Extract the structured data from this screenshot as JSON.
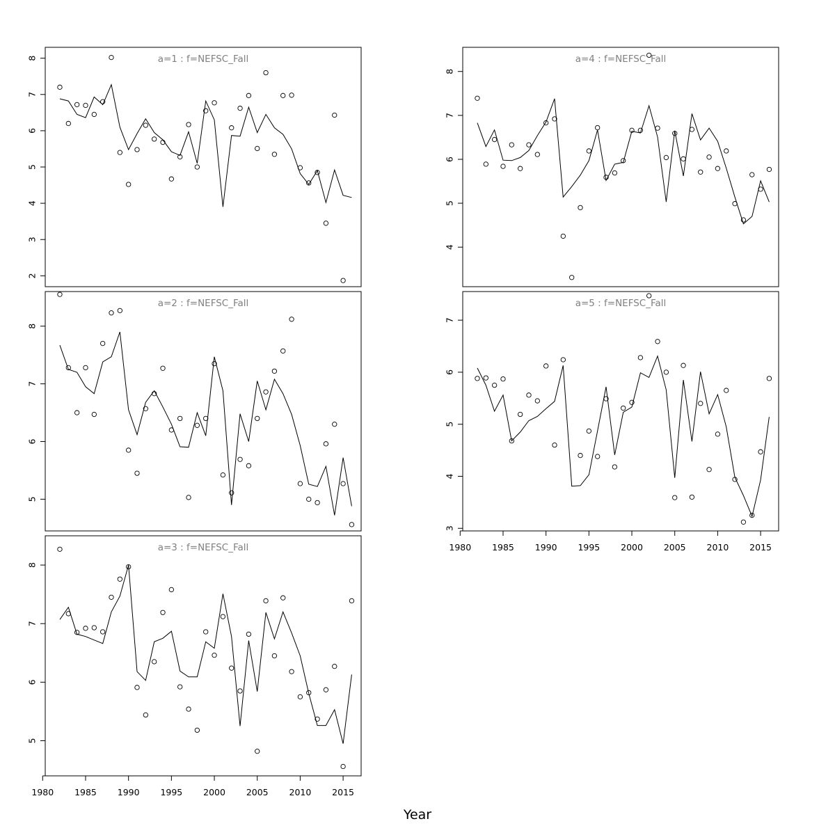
{
  "xlabel": "Year",
  "chart_data": [
    {
      "type": "line",
      "title": "a=1 : f=NEFSC_Fall",
      "x": [
        1982,
        1983,
        1984,
        1985,
        1986,
        1987,
        1988,
        1989,
        1990,
        1991,
        1992,
        1993,
        1994,
        1995,
        1996,
        1997,
        1998,
        1999,
        2000,
        2001,
        2002,
        2003,
        2004,
        2005,
        2006,
        2007,
        2008,
        2009,
        2010,
        2011,
        2012,
        2013,
        2014,
        2015,
        2016
      ],
      "series": [
        {
          "role": "observed",
          "marker": "open-circle",
          "values": [
            7.2,
            6.2,
            6.72,
            6.7,
            6.45,
            6.8,
            8.02,
            5.4,
            4.52,
            5.48,
            6.15,
            5.77,
            5.68,
            4.67,
            5.28,
            6.17,
            5.0,
            6.55,
            6.77,
            null,
            6.08,
            6.62,
            6.97,
            5.51,
            7.6,
            5.35,
            6.97,
            6.98,
            4.98,
            4.56,
            4.85,
            3.45,
            6.43,
            1.87,
            null
          ]
        },
        {
          "role": "predicted",
          "marker": "line",
          "values": [
            6.88,
            6.82,
            6.45,
            6.36,
            6.93,
            6.72,
            7.27,
            6.1,
            5.48,
            5.92,
            6.33,
            5.95,
            5.75,
            5.42,
            5.32,
            5.97,
            5.1,
            6.82,
            6.3,
            3.9,
            5.87,
            5.85,
            6.65,
            5.95,
            6.45,
            6.08,
            5.9,
            5.5,
            4.82,
            4.52,
            4.9,
            4.02,
            4.92,
            4.22,
            4.16
          ]
        }
      ],
      "ylim": [
        1.7,
        8.3
      ],
      "yticks": [
        2,
        3,
        4,
        5,
        6,
        7,
        8
      ],
      "show_xaxis": false
    },
    {
      "type": "line",
      "title": "a=2 : f=NEFSC_Fall",
      "x": [
        1982,
        1983,
        1984,
        1985,
        1986,
        1987,
        1988,
        1989,
        1990,
        1991,
        1992,
        1993,
        1994,
        1995,
        1996,
        1997,
        1998,
        1999,
        2000,
        2001,
        2002,
        2003,
        2004,
        2005,
        2006,
        2007,
        2008,
        2009,
        2010,
        2011,
        2012,
        2013,
        2014,
        2015,
        2016
      ],
      "series": [
        {
          "role": "observed",
          "marker": "open-circle",
          "values": [
            8.55,
            7.28,
            6.5,
            7.28,
            6.47,
            7.7,
            8.23,
            8.27,
            5.85,
            5.45,
            6.57,
            6.83,
            7.27,
            6.2,
            6.4,
            5.03,
            6.28,
            6.4,
            7.35,
            5.42,
            5.11,
            5.69,
            5.58,
            6.4,
            6.86,
            7.22,
            7.57,
            8.12,
            5.27,
            5.0,
            4.94,
            5.96,
            6.3,
            5.27,
            4.56
          ]
        },
        {
          "role": "predicted",
          "marker": "line",
          "values": [
            7.67,
            7.25,
            7.2,
            6.95,
            6.83,
            7.38,
            7.47,
            7.9,
            6.55,
            6.12,
            6.68,
            6.88,
            6.6,
            6.3,
            5.91,
            5.9,
            6.5,
            6.1,
            7.47,
            6.88,
            4.9,
            6.48,
            6.0,
            7.05,
            6.55,
            7.08,
            6.83,
            6.47,
            5.93,
            5.26,
            5.22,
            5.57,
            4.72,
            5.72,
            4.88
          ]
        }
      ],
      "ylim": [
        4.45,
        8.6
      ],
      "yticks": [
        5,
        6,
        7,
        8
      ],
      "show_xaxis": false
    },
    {
      "type": "line",
      "title": "a=3 : f=NEFSC_Fall",
      "x": [
        1982,
        1983,
        1984,
        1985,
        1986,
        1987,
        1988,
        1989,
        1990,
        1991,
        1992,
        1993,
        1994,
        1995,
        1996,
        1997,
        1998,
        1999,
        2000,
        2001,
        2002,
        2003,
        2004,
        2005,
        2006,
        2007,
        2008,
        2009,
        2010,
        2011,
        2012,
        2013,
        2014,
        2015,
        2016
      ],
      "series": [
        {
          "role": "observed",
          "marker": "open-circle",
          "values": [
            8.27,
            7.17,
            6.85,
            6.92,
            6.93,
            6.86,
            7.45,
            7.76,
            7.97,
            5.91,
            5.44,
            6.35,
            7.19,
            7.58,
            5.92,
            5.54,
            5.18,
            6.86,
            6.46,
            7.12,
            6.24,
            5.85,
            6.82,
            4.82,
            7.39,
            6.45,
            7.44,
            6.18,
            5.75,
            5.82,
            5.37,
            5.87,
            6.27,
            4.56,
            7.39
          ]
        },
        {
          "role": "predicted",
          "marker": "line",
          "values": [
            7.07,
            7.28,
            6.82,
            6.78,
            6.72,
            6.66,
            7.2,
            7.47,
            8.0,
            6.18,
            6.03,
            6.69,
            6.75,
            6.87,
            6.19,
            6.09,
            6.09,
            6.69,
            6.58,
            7.51,
            6.78,
            5.25,
            6.71,
            5.84,
            7.19,
            6.74,
            7.2,
            6.84,
            6.45,
            5.81,
            5.26,
            5.26,
            5.53,
            4.95,
            6.13
          ]
        }
      ],
      "ylim": [
        4.4,
        8.5
      ],
      "yticks": [
        5,
        6,
        7,
        8
      ],
      "xticks": [
        1980,
        1985,
        1990,
        1995,
        2000,
        2005,
        2010,
        2015
      ],
      "show_xaxis": true
    },
    {
      "type": "line",
      "title": "a=4 : f=NEFSC_Fall",
      "x": [
        1982,
        1983,
        1984,
        1985,
        1986,
        1987,
        1988,
        1989,
        1990,
        1991,
        1992,
        1993,
        1994,
        1995,
        1996,
        1997,
        1998,
        1999,
        2000,
        2001,
        2002,
        2003,
        2004,
        2005,
        2006,
        2007,
        2008,
        2009,
        2010,
        2011,
        2012,
        2013,
        2014,
        2015,
        2016
      ],
      "series": [
        {
          "role": "observed",
          "marker": "open-circle",
          "values": [
            7.39,
            5.89,
            6.45,
            5.84,
            6.33,
            5.79,
            6.33,
            6.11,
            6.83,
            6.92,
            4.25,
            3.31,
            4.9,
            6.19,
            6.72,
            5.59,
            5.69,
            5.97,
            6.66,
            6.66,
            8.37,
            6.71,
            6.04,
            6.59,
            6.01,
            6.68,
            5.71,
            6.05,
            5.79,
            6.19,
            4.99,
            4.62,
            5.65,
            5.32,
            5.77
          ]
        },
        {
          "role": "predicted",
          "marker": "line",
          "values": [
            6.83,
            6.29,
            6.67,
            5.98,
            5.97,
            6.04,
            6.2,
            6.54,
            6.85,
            7.38,
            5.14,
            5.38,
            5.64,
            5.97,
            6.67,
            5.52,
            5.89,
            5.93,
            6.64,
            6.6,
            7.22,
            6.51,
            5.03,
            6.65,
            5.62,
            7.04,
            6.44,
            6.71,
            6.41,
            5.8,
            5.14,
            4.53,
            4.7,
            5.51,
            5.03
          ]
        }
      ],
      "ylim": [
        3.1,
        8.55
      ],
      "yticks": [
        4,
        5,
        6,
        7,
        8
      ],
      "show_xaxis": false
    },
    {
      "type": "line",
      "title": "a=5 : f=NEFSC_Fall",
      "x": [
        1982,
        1983,
        1984,
        1985,
        1986,
        1987,
        1988,
        1989,
        1990,
        1991,
        1992,
        1993,
        1994,
        1995,
        1996,
        1997,
        1998,
        1999,
        2000,
        2001,
        2002,
        2003,
        2004,
        2005,
        2006,
        2007,
        2008,
        2009,
        2010,
        2011,
        2012,
        2013,
        2014,
        2015,
        2016
      ],
      "series": [
        {
          "role": "observed",
          "marker": "open-circle",
          "values": [
            5.88,
            5.89,
            5.75,
            5.87,
            4.68,
            5.19,
            5.56,
            5.45,
            6.12,
            4.6,
            6.24,
            null,
            4.4,
            4.87,
            4.38,
            5.49,
            4.18,
            5.31,
            5.42,
            6.28,
            7.47,
            6.59,
            6.0,
            3.59,
            6.13,
            3.6,
            5.4,
            4.13,
            4.81,
            5.65,
            3.94,
            3.12,
            3.25,
            4.47,
            5.88
          ]
        },
        {
          "role": "predicted",
          "marker": "line",
          "values": [
            6.08,
            5.75,
            5.25,
            5.56,
            4.68,
            4.85,
            5.07,
            5.15,
            5.3,
            5.44,
            6.13,
            3.81,
            3.82,
            4.03,
            4.87,
            5.72,
            4.41,
            5.23,
            5.33,
            5.99,
            5.9,
            6.31,
            5.66,
            3.97,
            5.85,
            4.67,
            6.01,
            5.2,
            5.57,
            4.95,
            3.98,
            3.63,
            3.23,
            3.93,
            5.14
          ]
        }
      ],
      "ylim": [
        2.95,
        7.55
      ],
      "yticks": [
        3,
        4,
        5,
        6,
        7
      ],
      "xticks": [
        1980,
        1985,
        1990,
        1995,
        2000,
        2005,
        2010,
        2015
      ],
      "show_xaxis": true
    }
  ]
}
